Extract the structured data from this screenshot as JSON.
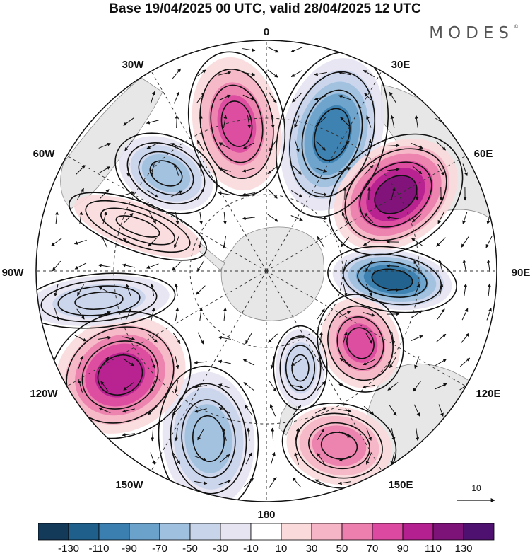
{
  "title": "Base 19/04/2025 00 UTC, valid 28/04/2025 12 UTC",
  "brand": "MODES",
  "brand_mark": "©",
  "longitude_labels": {
    "0": "0",
    "30E": "30E",
    "60E": "60E",
    "90E": "90E",
    "120E": "120E",
    "150E": "150E",
    "180": "180",
    "150W": "150W",
    "120W": "120W",
    "90W": "90W",
    "60W": "60W",
    "30W": "30W"
  },
  "reference_vector": {
    "label": "10"
  },
  "colorbar": {
    "labels": [
      "-130",
      "-110",
      "-90",
      "-70",
      "-50",
      "-30",
      "-10",
      "10",
      "30",
      "50",
      "70",
      "90",
      "110",
      "130"
    ],
    "colors": [
      "#143a5a",
      "#1f5f8b",
      "#3a7fb0",
      "#6aa2cb",
      "#9fc0de",
      "#c8d4ea",
      "#e6e4f1",
      "#ffffff",
      "#fadadb",
      "#f5b5c6",
      "#ec7fae",
      "#db4aa0",
      "#b4208f",
      "#7d1278",
      "#4f1170"
    ]
  },
  "colors": {
    "land": "#e7e7e7",
    "coast": "#8a8a8a",
    "grid": "#333333"
  },
  "anomaly_centers": [
    {
      "name": "pos-30W",
      "value": 95
    },
    {
      "name": "neg-40W",
      "value": -70
    },
    {
      "name": "pos-70W",
      "value": 30
    },
    {
      "name": "neg-20E",
      "value": -115
    },
    {
      "name": "pos-55E",
      "value": 125
    },
    {
      "name": "neg-90E",
      "value": -120
    },
    {
      "name": "pos-120E",
      "value": 90
    },
    {
      "name": "pos-160E",
      "value": 70
    },
    {
      "name": "neg-170W",
      "value": -45
    },
    {
      "name": "neg-145W",
      "value": -65
    },
    {
      "name": "pos-120W",
      "value": 100
    },
    {
      "name": "neg-95W",
      "value": -55
    }
  ]
}
